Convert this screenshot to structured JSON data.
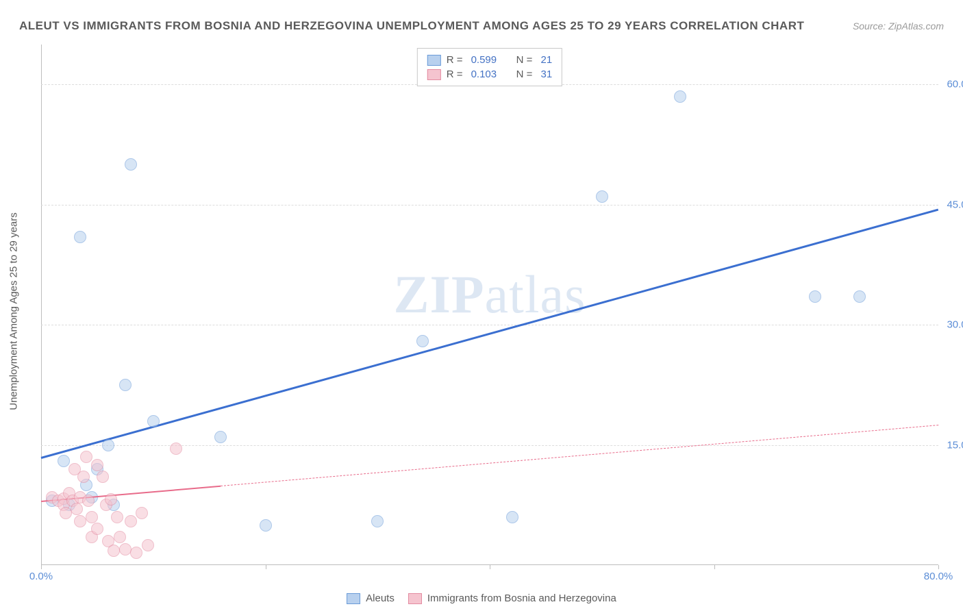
{
  "header": {
    "title": "ALEUT VS IMMIGRANTS FROM BOSNIA AND HERZEGOVINA UNEMPLOYMENT AMONG AGES 25 TO 29 YEARS CORRELATION CHART",
    "source": "Source: ZipAtlas.com"
  },
  "watermark": {
    "part1": "ZIP",
    "part2": "atlas"
  },
  "chart": {
    "type": "scatter",
    "y_axis_label": "Unemployment Among Ages 25 to 29 years",
    "xlim": [
      0,
      80
    ],
    "ylim": [
      0,
      65
    ],
    "x_ticks": [
      0,
      20,
      40,
      60,
      80
    ],
    "x_tick_labels": [
      "0.0%",
      "",
      "",
      "",
      "80.0%"
    ],
    "y_ticks": [
      15,
      30,
      45,
      60
    ],
    "y_tick_labels": [
      "15.0%",
      "30.0%",
      "45.0%",
      "60.0%"
    ],
    "background_color": "#ffffff",
    "grid_color": "#dcdcdc",
    "axis_color": "#bdbdbd",
    "tick_label_color": "#5b8dd6",
    "marker_radius": 9,
    "series": [
      {
        "name": "Aleuts",
        "fill_color": "#b8d0ee",
        "stroke_color": "#6a9bd8",
        "fill_opacity": 0.55,
        "reg_color": "#3b6fd0",
        "reg_width": 3,
        "reg_dash": "solid",
        "reg_start": [
          0,
          13.5
        ],
        "reg_end": [
          80,
          44.5
        ],
        "R": "0.599",
        "N": "21",
        "points": [
          [
            2,
            13
          ],
          [
            3.5,
            41
          ],
          [
            4,
            10
          ],
          [
            5,
            12
          ],
          [
            6,
            15
          ],
          [
            8,
            50
          ],
          [
            7.5,
            22.5
          ],
          [
            10,
            18
          ],
          [
            16,
            16
          ],
          [
            20,
            5
          ],
          [
            30,
            5.5
          ],
          [
            34,
            28
          ],
          [
            42,
            6
          ],
          [
            50,
            46
          ],
          [
            57,
            58.5
          ],
          [
            69,
            33.5
          ],
          [
            73,
            33.5
          ],
          [
            1,
            8
          ],
          [
            2.5,
            7.5
          ],
          [
            4.5,
            8.5
          ],
          [
            6.5,
            7.5
          ]
        ]
      },
      {
        "name": "Immigrants from Bosnia and Herzegovina",
        "fill_color": "#f5c4cf",
        "stroke_color": "#e38ba1",
        "fill_opacity": 0.55,
        "reg_color": "#e86b8a",
        "reg_width": 2.5,
        "reg_solid_until_x": 16,
        "reg_dash": "dashed",
        "reg_start": [
          0,
          8
        ],
        "reg_end": [
          80,
          17.5
        ],
        "R": "0.103",
        "N": "31",
        "points": [
          [
            1,
            8.5
          ],
          [
            1.5,
            8
          ],
          [
            2,
            8.3
          ],
          [
            2,
            7.5
          ],
          [
            2.5,
            9
          ],
          [
            2.8,
            8
          ],
          [
            3,
            12
          ],
          [
            3.2,
            7
          ],
          [
            3.5,
            8.5
          ],
          [
            3.8,
            11
          ],
          [
            4,
            13.5
          ],
          [
            4.2,
            8
          ],
          [
            4.5,
            6
          ],
          [
            4.5,
            3.5
          ],
          [
            5,
            12.5
          ],
          [
            5,
            4.5
          ],
          [
            5.5,
            11
          ],
          [
            5.8,
            7.5
          ],
          [
            6,
            3
          ],
          [
            6.2,
            8.2
          ],
          [
            6.5,
            1.8
          ],
          [
            6.8,
            6
          ],
          [
            7,
            3.5
          ],
          [
            7.5,
            2
          ],
          [
            8,
            5.5
          ],
          [
            8.5,
            1.5
          ],
          [
            9,
            6.5
          ],
          [
            9.5,
            2.5
          ],
          [
            12,
            14.5
          ],
          [
            3.5,
            5.5
          ],
          [
            2.2,
            6.5
          ]
        ]
      }
    ]
  },
  "legend_top": {
    "r_label": "R =",
    "n_label": "N ="
  },
  "legend_bottom": {
    "items": [
      "Aleuts",
      "Immigrants from Bosnia and Herzegovina"
    ]
  }
}
